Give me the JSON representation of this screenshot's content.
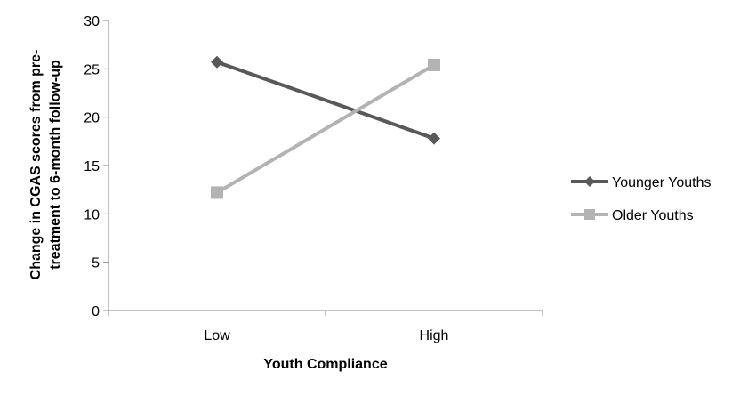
{
  "chart_data": {
    "type": "line",
    "title": "",
    "xlabel": "Youth Compliance",
    "ylabel_lines": [
      "Change in CGAS scores from pre-",
      "treatment to 6-month follow-up"
    ],
    "categories": [
      "Low",
      "High"
    ],
    "ylim": [
      0,
      30
    ],
    "yticks": [
      0,
      5,
      10,
      15,
      20,
      25,
      30
    ],
    "ytick_labels": [
      "0",
      "5",
      "10",
      "15",
      "20",
      "25",
      "30"
    ],
    "grid": false,
    "legend_position": "right",
    "series": [
      {
        "name": "Younger Youths",
        "values": [
          25.7,
          17.8
        ],
        "color": "#595959",
        "marker": "diamond"
      },
      {
        "name": "Older Youths",
        "values": [
          12.2,
          25.4
        ],
        "color": "#b3b3b3",
        "marker": "square"
      }
    ]
  }
}
